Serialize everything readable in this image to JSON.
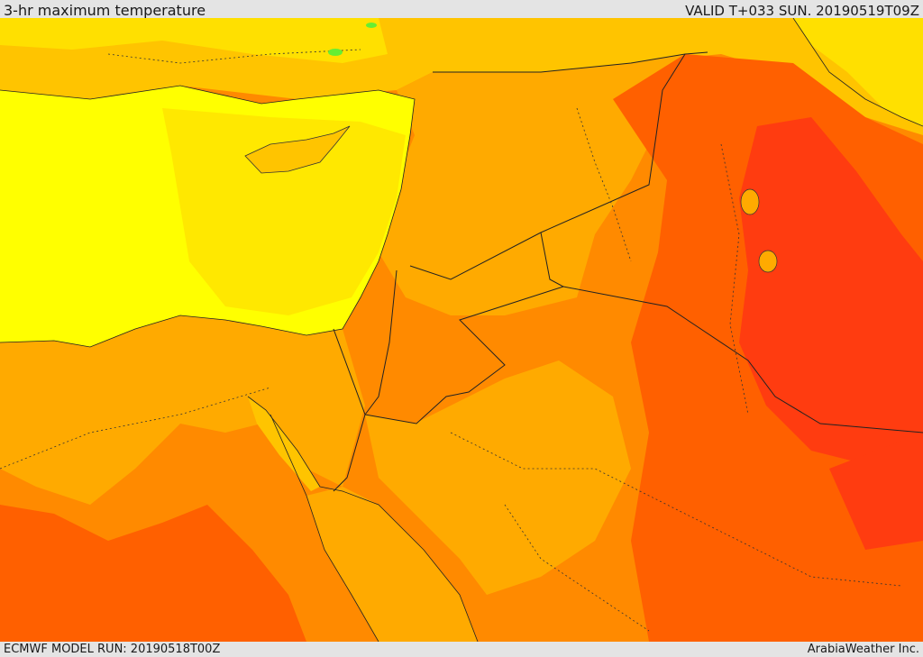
{
  "header": {
    "title": "3-hr maximum temperature",
    "valid_text": "VALID T+033 SUN. 20190519T09Z"
  },
  "footer": {
    "model_run": "ECMWF MODEL RUN: 20190518T00Z",
    "brand": "ArabiaWeather Inc."
  },
  "palette": {
    "sea_mediterranean": "#ffff00",
    "coastal_yellow": "#ffe000",
    "light_orange": "#ffc400",
    "orange": "#ffaa00",
    "dark_orange": "#ff8a00",
    "red_orange": "#ff6000",
    "red": "#ff3c10",
    "green_spot": "#66ee33"
  }
}
